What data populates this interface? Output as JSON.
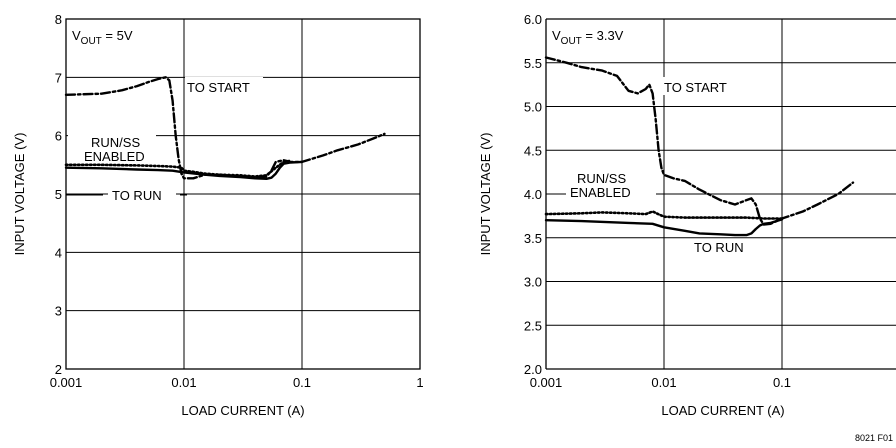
{
  "figure_code": "8021 F01",
  "chart_data": [
    {
      "type": "line",
      "title": "",
      "condition_label": {
        "prefix": "V",
        "subscript": "OUT",
        "suffix": " = 5V"
      },
      "xlabel": "LOAD CURRENT (A)",
      "ylabel": "INPUT VOLTAGE (V)",
      "x_scale": "log",
      "xlim": [
        0.001,
        1
      ],
      "ylim": [
        2,
        8
      ],
      "x_ticks": [
        0.001,
        0.01,
        0.1,
        1
      ],
      "x_tick_labels": [
        "0.001",
        "0.01",
        "0.1",
        "1"
      ],
      "y_ticks": [
        2,
        3,
        4,
        5,
        6,
        7,
        8
      ],
      "y_tick_labels": [
        "2",
        "3",
        "4",
        "5",
        "6",
        "7",
        "8"
      ],
      "grid": true,
      "series": [
        {
          "name": "TO START",
          "style": "dashdot",
          "color": "#000000",
          "x": [
            0.001,
            0.002,
            0.003,
            0.004,
            0.005,
            0.006,
            0.007,
            0.0075,
            0.008,
            0.0085,
            0.009,
            0.0095,
            0.01,
            0.012,
            0.015,
            0.02,
            0.03,
            0.04,
            0.05,
            0.055,
            0.06,
            0.07,
            0.08,
            0.1,
            0.15,
            0.2,
            0.3,
            0.4,
            0.5
          ],
          "y": [
            6.7,
            6.72,
            6.78,
            6.85,
            6.92,
            6.97,
            7.0,
            6.95,
            6.6,
            6.0,
            5.6,
            5.35,
            5.27,
            5.27,
            5.33,
            5.33,
            5.3,
            5.28,
            5.3,
            5.4,
            5.55,
            5.58,
            5.55,
            5.55,
            5.66,
            5.75,
            5.85,
            5.95,
            6.03
          ]
        },
        {
          "name": "RUN/SS ENABLED",
          "style": "dotted",
          "color": "#000000",
          "x": [
            0.001,
            0.002,
            0.004,
            0.006,
            0.008,
            0.0095,
            0.01,
            0.012,
            0.015,
            0.02,
            0.03,
            0.04,
            0.05,
            0.06,
            0.07,
            0.08
          ],
          "y": [
            5.5,
            5.5,
            5.49,
            5.48,
            5.47,
            5.45,
            5.4,
            5.38,
            5.35,
            5.33,
            5.32,
            5.3,
            5.32,
            5.45,
            5.55,
            5.57
          ]
        },
        {
          "name": "TO RUN",
          "style": "solid",
          "color": "#000000",
          "x": [
            0.001,
            0.002,
            0.004,
            0.006,
            0.008,
            0.01,
            0.015,
            0.02,
            0.03,
            0.04,
            0.05,
            0.055,
            0.06,
            0.065,
            0.07,
            0.08,
            0.1
          ],
          "y": [
            5.45,
            5.44,
            5.42,
            5.41,
            5.4,
            5.37,
            5.33,
            5.31,
            5.29,
            5.27,
            5.26,
            5.28,
            5.35,
            5.45,
            5.52,
            5.54,
            5.55
          ]
        }
      ],
      "annotations": [
        "TO START",
        "RUN/SS",
        "ENABLED",
        "TO RUN"
      ]
    },
    {
      "type": "line",
      "title": "",
      "condition_label": {
        "prefix": "V",
        "subscript": "OUT",
        "suffix": " = 3.3V"
      },
      "xlabel": "LOAD CURRENT (A)",
      "ylabel": "INPUT VOLTAGE (V)",
      "x_scale": "log",
      "xlim": [
        0.001,
        1
      ],
      "ylim": [
        2.0,
        6.0
      ],
      "x_ticks": [
        0.001,
        0.01,
        0.1
      ],
      "x_tick_labels": [
        "0.001",
        "0.01",
        "0.1"
      ],
      "y_ticks": [
        2.0,
        2.5,
        3.0,
        3.5,
        4.0,
        4.5,
        5.0,
        5.5,
        6.0
      ],
      "y_tick_labels": [
        "2.0",
        "2.5",
        "3.0",
        "3.5",
        "4.0",
        "4.5",
        "5.0",
        "5.5",
        "6.0"
      ],
      "grid": true,
      "series": [
        {
          "name": "TO START",
          "style": "dashdot",
          "color": "#000000",
          "x": [
            0.001,
            0.0015,
            0.002,
            0.003,
            0.004,
            0.005,
            0.006,
            0.007,
            0.0075,
            0.008,
            0.0085,
            0.009,
            0.0095,
            0.01,
            0.012,
            0.015,
            0.02,
            0.03,
            0.04,
            0.05,
            0.055,
            0.06,
            0.065,
            0.07,
            0.08,
            0.1,
            0.15,
            0.2,
            0.3,
            0.4
          ],
          "y": [
            5.56,
            5.5,
            5.45,
            5.41,
            5.35,
            5.18,
            5.15,
            5.2,
            5.25,
            5.15,
            4.85,
            4.5,
            4.3,
            4.22,
            4.18,
            4.15,
            4.05,
            3.93,
            3.88,
            3.93,
            3.95,
            3.88,
            3.72,
            3.65,
            3.66,
            3.72,
            3.8,
            3.88,
            4.0,
            4.13
          ]
        },
        {
          "name": "RUN/SS ENABLED",
          "style": "dotted",
          "color": "#000000",
          "x": [
            0.001,
            0.002,
            0.003,
            0.005,
            0.007,
            0.008,
            0.01,
            0.015,
            0.02,
            0.03,
            0.05,
            0.07,
            0.08,
            0.1
          ],
          "y": [
            3.77,
            3.78,
            3.79,
            3.78,
            3.77,
            3.8,
            3.74,
            3.73,
            3.73,
            3.73,
            3.73,
            3.72,
            3.72,
            3.72
          ]
        },
        {
          "name": "TO RUN",
          "style": "solid",
          "color": "#000000",
          "x": [
            0.001,
            0.002,
            0.005,
            0.008,
            0.01,
            0.015,
            0.02,
            0.03,
            0.04,
            0.05,
            0.055,
            0.06,
            0.065,
            0.07,
            0.08,
            0.1
          ],
          "y": [
            3.7,
            3.69,
            3.67,
            3.66,
            3.62,
            3.58,
            3.55,
            3.54,
            3.53,
            3.53,
            3.55,
            3.6,
            3.64,
            3.66,
            3.67,
            3.71
          ]
        }
      ],
      "annotations": [
        "TO START",
        "RUN/SS",
        "ENABLED",
        "TO RUN"
      ]
    }
  ]
}
